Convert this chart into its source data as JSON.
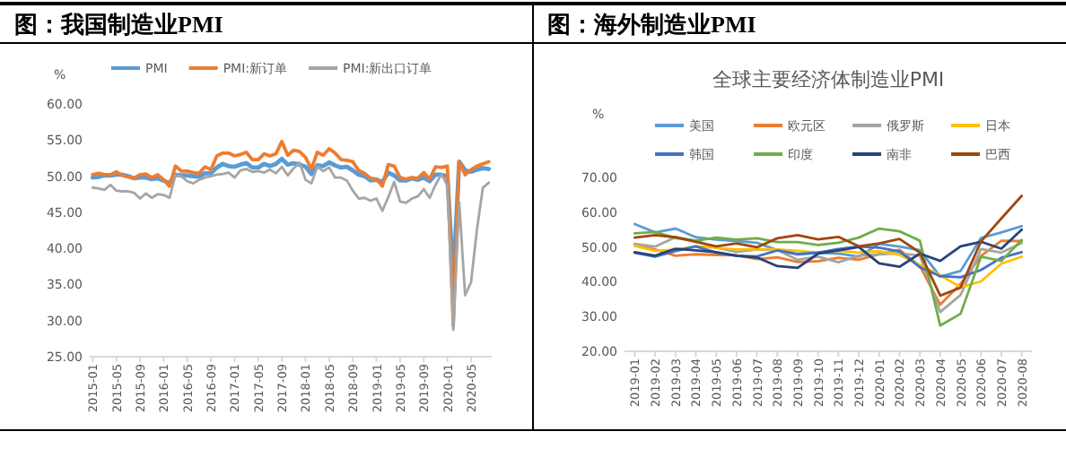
{
  "chart_data": [
    {
      "type": "line",
      "title": "图：我国制造业PMI",
      "ylabel": "%",
      "legend": "top",
      "categories": [
        "2015-01",
        null,
        null,
        null,
        "2015-05",
        null,
        null,
        null,
        "2015-09",
        null,
        null,
        null,
        "2016-01",
        null,
        null,
        null,
        "2016-05",
        null,
        null,
        null,
        "2016-09",
        null,
        null,
        null,
        "2017-01",
        null,
        null,
        null,
        "2017-05",
        null,
        null,
        null,
        "2017-09",
        null,
        null,
        null,
        "2018-01",
        null,
        null,
        null,
        "2018-05",
        null,
        null,
        null,
        "2018-09",
        null,
        null,
        null,
        "2019-01",
        null,
        null,
        null,
        "2019-05",
        null,
        null,
        null,
        "2019-09",
        null,
        null,
        null,
        "2020-01",
        null,
        null,
        null,
        "2020-05",
        null,
        null,
        null
      ],
      "ylim": [
        25,
        60
      ],
      "yticks": [
        {
          "value": 25,
          "label": "25.00"
        },
        {
          "value": 30,
          "label": "30.00"
        },
        {
          "value": 35,
          "label": "35.00"
        },
        {
          "value": 40,
          "label": "40.00"
        },
        {
          "value": 45,
          "label": "45.00"
        },
        {
          "value": 50,
          "label": "50.00"
        },
        {
          "value": 55,
          "label": "55.00"
        },
        {
          "value": 60,
          "label": "60.00"
        }
      ],
      "series": [
        {
          "name": "PMI",
          "color": "#5b9bd5",
          "values": [
            49.8,
            49.9,
            50.1,
            50.1,
            50.2,
            50.2,
            50.0,
            49.7,
            49.8,
            49.8,
            49.6,
            49.7,
            49.4,
            49.0,
            50.2,
            50.1,
            50.1,
            50.0,
            49.9,
            50.4,
            50.4,
            51.2,
            51.7,
            51.4,
            51.3,
            51.6,
            51.8,
            51.2,
            51.2,
            51.7,
            51.4,
            51.7,
            52.4,
            51.6,
            51.8,
            51.6,
            51.3,
            50.3,
            51.5,
            51.4,
            51.9,
            51.5,
            51.2,
            51.3,
            50.8,
            50.2,
            50.0,
            49.4,
            49.5,
            49.2,
            50.5,
            50.1,
            49.4,
            49.4,
            49.7,
            49.5,
            49.8,
            49.3,
            50.2,
            50.2,
            50.0,
            35.7,
            52.0,
            50.8,
            50.6,
            50.9,
            51.1,
            51.0
          ]
        },
        {
          "name": "PMI:新订单",
          "color": "#ed7d31",
          "values": [
            50.2,
            50.4,
            50.2,
            50.2,
            50.6,
            50.1,
            49.9,
            49.7,
            50.2,
            50.3,
            49.8,
            50.2,
            49.5,
            48.6,
            51.4,
            50.7,
            50.7,
            50.5,
            50.4,
            51.3,
            50.9,
            52.8,
            53.2,
            53.2,
            52.8,
            53.0,
            53.3,
            52.3,
            52.3,
            53.1,
            52.8,
            53.1,
            54.8,
            52.9,
            53.6,
            53.4,
            52.6,
            51.0,
            53.3,
            52.9,
            53.8,
            53.2,
            52.3,
            52.2,
            52.0,
            50.8,
            50.4,
            49.7,
            49.6,
            48.6,
            51.6,
            51.4,
            49.8,
            49.6,
            49.8,
            49.7,
            50.5,
            49.6,
            51.3,
            51.2,
            51.4,
            29.3,
            52.0,
            50.2,
            50.9,
            51.4,
            51.7,
            52.0
          ]
        },
        {
          "name": "PMI:新出口订单",
          "color": "#a5a5a5",
          "values": [
            48.4,
            48.3,
            48.1,
            48.8,
            48.0,
            47.9,
            47.9,
            47.7,
            46.9,
            47.6,
            47.0,
            47.5,
            47.4,
            47.0,
            50.1,
            50.0,
            49.3,
            49.0,
            49.5,
            49.8,
            50.0,
            50.2,
            50.3,
            50.5,
            49.8,
            50.8,
            51.0,
            50.6,
            50.7,
            50.5,
            50.9,
            50.4,
            51.3,
            50.1,
            51.1,
            51.9,
            49.5,
            49.0,
            51.3,
            50.7,
            51.2,
            49.8,
            49.8,
            49.4,
            48.0,
            46.9,
            47.0,
            46.6,
            46.9,
            45.2,
            47.1,
            49.2,
            46.5,
            46.3,
            46.9,
            47.2,
            48.2,
            47.0,
            48.8,
            50.3,
            48.7,
            28.7,
            46.4,
            33.5,
            35.3,
            42.6,
            48.4,
            49.1
          ]
        }
      ]
    },
    {
      "type": "line",
      "title": "图：海外制造业PMI",
      "subtitle": "全球主要经济体制造业PMI",
      "ylabel": "%",
      "legend": "top",
      "categories": [
        "2019-01",
        "2019-02",
        "2019-03",
        "2019-04",
        "2019-05",
        "2019-06",
        "2019-07",
        "2019-08",
        "2019-09",
        "2019-10",
        "2019-11",
        "2019-12",
        "2020-01",
        "2020-02",
        "2020-03",
        "2020-04",
        "2020-05",
        "2020-06",
        "2020-07",
        "2020-08"
      ],
      "ylim": [
        20,
        70
      ],
      "yticks": [
        {
          "value": 20,
          "label": "20.00"
        },
        {
          "value": 30,
          "label": "30.00"
        },
        {
          "value": 40,
          "label": "40.00"
        },
        {
          "value": 50,
          "label": "50.00"
        },
        {
          "value": 60,
          "label": "60.00"
        },
        {
          "value": 70,
          "label": "70.00"
        }
      ],
      "series": [
        {
          "name": "美国",
          "color": "#5b9bd5",
          "values": [
            56.6,
            54.2,
            55.3,
            52.8,
            52.1,
            51.7,
            51.2,
            49.1,
            47.8,
            48.3,
            48.1,
            47.2,
            50.9,
            50.1,
            49.1,
            41.5,
            43.1,
            52.6,
            54.2,
            56.0
          ]
        },
        {
          "name": "欧元区",
          "color": "#ed7d31",
          "values": [
            50.5,
            49.3,
            47.5,
            47.9,
            47.7,
            47.6,
            46.5,
            47.0,
            45.7,
            45.9,
            46.9,
            46.3,
            47.9,
            49.2,
            44.5,
            33.4,
            39.4,
            47.4,
            51.8,
            51.7
          ]
        },
        {
          "name": "俄罗斯",
          "color": "#a5a5a5",
          "values": [
            50.9,
            50.1,
            52.8,
            51.8,
            49.8,
            48.6,
            49.3,
            49.1,
            46.3,
            47.2,
            45.6,
            47.5,
            47.9,
            48.2,
            47.5,
            31.3,
            36.2,
            49.4,
            48.4,
            51.1
          ]
        },
        {
          "name": "日本",
          "color": "#ffc000",
          "values": [
            50.3,
            48.9,
            49.2,
            50.2,
            49.8,
            49.3,
            49.4,
            49.3,
            48.9,
            48.4,
            48.9,
            48.4,
            48.8,
            47.8,
            44.8,
            41.9,
            38.4,
            40.1,
            45.2,
            47.2
          ]
        },
        {
          "name": "韩国",
          "color": "#4472c4",
          "values": [
            48.3,
            47.2,
            48.8,
            50.2,
            48.4,
            47.5,
            47.3,
            49.0,
            48.0,
            48.4,
            49.4,
            50.1,
            49.8,
            48.7,
            44.2,
            41.6,
            41.3,
            43.4,
            46.9,
            48.5
          ]
        },
        {
          "name": "印度",
          "color": "#70ad47",
          "values": [
            53.9,
            54.3,
            52.6,
            51.8,
            52.7,
            52.1,
            52.5,
            51.4,
            51.4,
            50.6,
            51.2,
            52.7,
            55.3,
            54.5,
            51.8,
            27.4,
            30.8,
            47.2,
            46.0,
            52.0
          ]
        },
        {
          "name": "南非",
          "color": "#264478",
          "values": [
            48.5,
            47.5,
            49.5,
            49.0,
            48.5,
            47.5,
            47.0,
            44.5,
            44.0,
            48.1,
            49.0,
            50.0,
            45.3,
            44.3,
            48.1,
            46.0,
            50.2,
            51.5,
            49.5,
            55.0
          ]
        },
        {
          "name": "巴西",
          "color": "#9e480e",
          "values": [
            52.7,
            53.4,
            52.8,
            51.5,
            50.2,
            51.0,
            49.9,
            52.5,
            53.4,
            52.2,
            52.9,
            50.2,
            51.0,
            52.3,
            48.4,
            36.0,
            38.3,
            51.6,
            58.2,
            64.7
          ]
        }
      ]
    }
  ]
}
